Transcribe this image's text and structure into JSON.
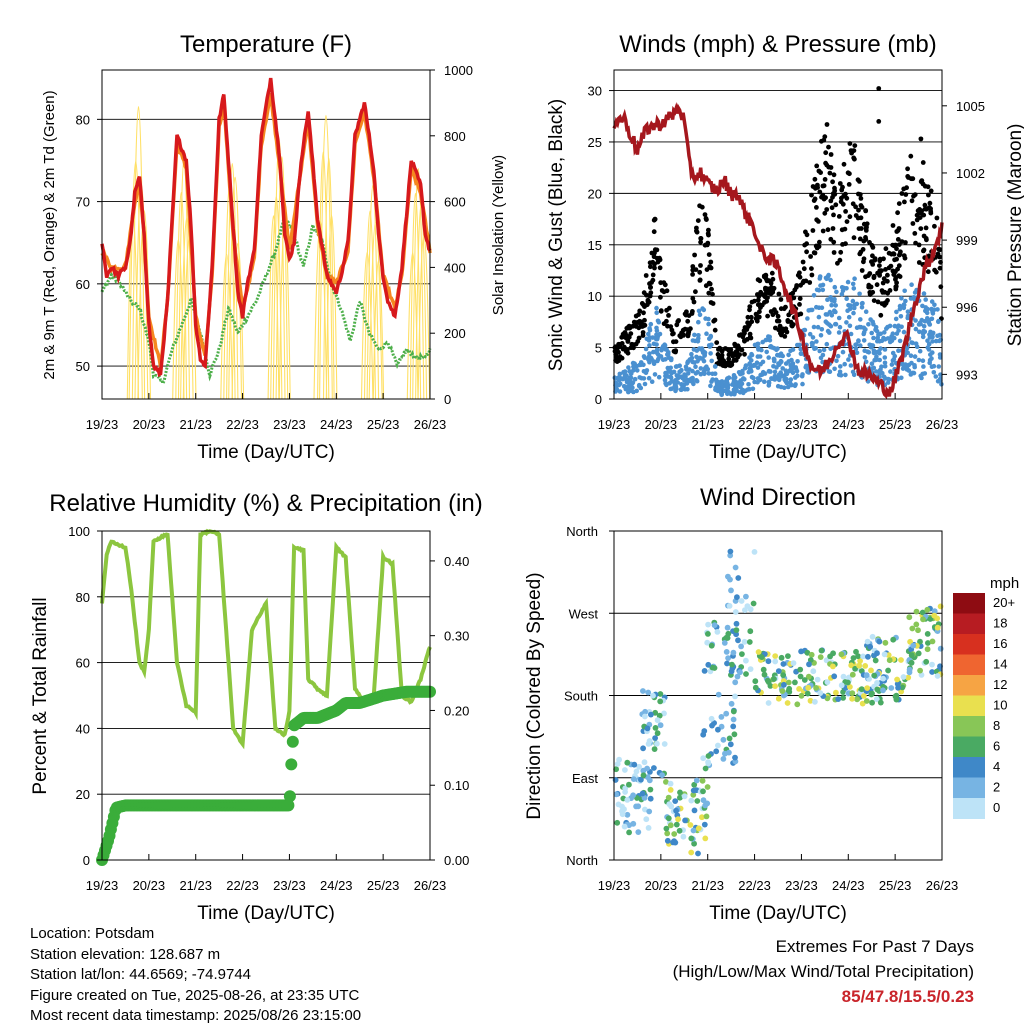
{
  "chart_data": [
    {
      "type": "line",
      "title": "Temperature (F)",
      "xlabel": "Time (Day/UTC)",
      "ylabel": "2m & 9m T (Red, Orange) & 2m Td (Green)",
      "ylabel_right": "Solar Insolation (Yellow)",
      "x_ticks": [
        "19/23",
        "20/23",
        "21/23",
        "22/23",
        "23/23",
        "24/23",
        "25/23",
        "26/23"
      ],
      "ylim": [
        46,
        86
      ],
      "y_ticks": [
        50,
        60,
        70,
        80
      ],
      "ylim_right": [
        0,
        1000
      ],
      "y_ticks_right": [
        0,
        200,
        400,
        600,
        800,
        1000
      ],
      "grid": "horizontal",
      "colors": {
        "t2m": "#d7191c",
        "t9m": "#f5871f",
        "td": "#4daf4a",
        "solar": "#ffe066"
      },
      "series": [
        {
          "key": "t2m",
          "x": [
            0,
            0.1,
            0.2,
            0.35,
            0.5,
            0.6,
            0.7,
            0.8,
            0.9,
            1.0,
            1.1,
            1.25,
            1.4,
            1.6,
            1.8,
            1.9,
            2.0,
            2.1,
            2.2,
            2.35,
            2.5,
            2.6,
            2.8,
            2.9,
            3.0,
            3.1,
            3.25,
            3.4,
            3.6,
            3.8,
            3.9,
            4.0,
            4.1,
            4.25,
            4.4,
            4.6,
            4.8,
            4.9,
            5.0,
            5.1,
            5.25,
            5.4,
            5.6,
            5.8,
            5.9,
            6.0,
            6.1,
            6.25,
            6.4,
            6.6,
            6.8,
            6.9,
            7.0
          ],
          "y": [
            65,
            61,
            62,
            61,
            62,
            65,
            71,
            73,
            66,
            55,
            50,
            49,
            58,
            78,
            75,
            67,
            55,
            51,
            50,
            62,
            80,
            83,
            67,
            59,
            56,
            60,
            64,
            78,
            85,
            75,
            66,
            63,
            65,
            75,
            81,
            68,
            61,
            60,
            59,
            61,
            65,
            78,
            82,
            74,
            66,
            61,
            58,
            56,
            62,
            75,
            72,
            66,
            64
          ]
        },
        {
          "key": "t9m",
          "x": [
            0,
            0.2,
            0.5,
            0.7,
            0.8,
            0.9,
            1.0,
            1.25,
            1.4,
            1.6,
            1.8,
            2.0,
            2.2,
            2.35,
            2.5,
            2.6,
            2.8,
            3.0,
            3.25,
            3.4,
            3.6,
            3.8,
            4.0,
            4.25,
            4.4,
            4.6,
            4.8,
            5.0,
            5.25,
            5.4,
            5.6,
            5.8,
            6.0,
            6.25,
            6.4,
            6.6,
            6.8,
            7.0
          ],
          "y": [
            64,
            62,
            62,
            70,
            72,
            66,
            56,
            50,
            58,
            77,
            74,
            56,
            51,
            61,
            79,
            82,
            66,
            57,
            63,
            77,
            83,
            74,
            64,
            74,
            80,
            67,
            61,
            60,
            64,
            77,
            81,
            73,
            61,
            57,
            61,
            74,
            71,
            64
          ]
        },
        {
          "key": "td",
          "x": [
            0,
            0.2,
            0.4,
            0.6,
            0.8,
            1.0,
            1.1,
            1.3,
            1.5,
            1.7,
            1.9,
            2.1,
            2.3,
            2.5,
            2.7,
            2.9,
            3.1,
            3.3,
            3.5,
            3.7,
            3.9,
            4.1,
            4.3,
            4.5,
            4.7,
            4.9,
            5.1,
            5.3,
            5.5,
            5.7,
            5.9,
            6.1,
            6.3,
            6.5,
            6.7,
            6.9,
            7.0
          ],
          "y": [
            59,
            61,
            60,
            58,
            57,
            53,
            49,
            48,
            52,
            55,
            58,
            54,
            49,
            52,
            57,
            54,
            56,
            58,
            61,
            64,
            68,
            66,
            62,
            67,
            65,
            60,
            57,
            53,
            58,
            54,
            52,
            53,
            50,
            52,
            51,
            51,
            52
          ]
        },
        {
          "key": "solar",
          "peaks_x": [
            0.78,
            1.75,
            2.78,
            3.78,
            4.78,
            5.78,
            6.75
          ],
          "peaks_y": [
            1000,
            840,
            880,
            950,
            1000,
            780,
            860
          ]
        }
      ]
    },
    {
      "type": "scatter",
      "title": "Winds (mph) & Pressure (mb)",
      "xlabel": "Time (Day/UTC)",
      "ylabel": "Sonic Wind & Gust (Blue, Black)",
      "ylabel_right": "Station Pressure (Maroon)",
      "x_ticks": [
        "19/23",
        "20/23",
        "21/23",
        "22/23",
        "23/23",
        "24/23",
        "25/23",
        "26/23"
      ],
      "ylim": [
        0,
        32
      ],
      "y_ticks": [
        0,
        5,
        10,
        15,
        20,
        25,
        30
      ],
      "ylim_right": [
        991.9,
        1006.6
      ],
      "y_ticks_right": [
        993,
        996,
        999,
        1002,
        1005
      ],
      "grid": "horizontal",
      "colors": {
        "wind": "#4a90d0",
        "gust": "#000000",
        "pressure": "#a5171d"
      },
      "pressure": {
        "x": [
          0,
          0.2,
          0.4,
          0.5,
          0.7,
          1.0,
          1.2,
          1.4,
          1.5,
          1.6,
          1.7,
          1.85,
          2.0,
          2.2,
          2.35,
          2.5,
          2.6,
          2.8,
          3.0,
          3.1,
          3.3,
          3.5,
          3.6,
          3.75,
          3.9,
          4.0,
          4.2,
          4.4,
          4.6,
          4.8,
          5.0,
          5.2,
          5.5,
          5.7,
          5.9,
          6.0,
          6.2,
          6.4,
          6.6,
          6.8,
          7.0
        ],
        "y": [
          1004.2,
          1004.5,
          1003.5,
          1003.0,
          1004.0,
          1004.2,
          1004.5,
          1004.9,
          1004.3,
          1002.5,
          1001.8,
          1002.0,
          1001.5,
          1001.2,
          1001.7,
          1001.0,
          1001.2,
          1000.2,
          999.5,
          998.6,
          998.2,
          997.8,
          997.2,
          996.3,
          995.4,
          994.8,
          993.4,
          993.1,
          993.6,
          994.5,
          994.7,
          993.2,
          992.9,
          992.5,
          992.2,
          992.8,
          994.2,
          996.0,
          997.5,
          998.4,
          999.6
        ]
      },
      "wind_envelope": {
        "x": [
          0,
          0.3,
          0.6,
          0.9,
          1.0,
          1.3,
          1.6,
          1.8,
          2.0,
          2.2,
          2.5,
          2.8,
          3.0,
          3.3,
          3.6,
          3.9,
          4.2,
          4.5,
          4.8,
          5.1,
          5.4,
          5.7,
          6.0,
          6.3,
          6.6,
          6.9,
          7.0
        ],
        "y": [
          2,
          3,
          4,
          9,
          6,
          3,
          4,
          9,
          8,
          2,
          2,
          3,
          5,
          6,
          4,
          5,
          9,
          13,
          10,
          12,
          8,
          6,
          8,
          11,
          10,
          9,
          5
        ]
      },
      "gust_outliers": [
        [
          5.65,
          30.2
        ],
        [
          5.65,
          27.0
        ],
        [
          6.55,
          25.3
        ],
        [
          6.6,
          23.0
        ]
      ]
    },
    {
      "type": "line",
      "title": "Relative Humidity (%) & Precipitation (in)",
      "xlabel": "Time (Day/UTC)",
      "ylabel": "Percent & Total Rainfall",
      "x_ticks": [
        "19/23",
        "20/23",
        "21/23",
        "22/23",
        "23/23",
        "24/23",
        "25/23",
        "26/23"
      ],
      "ylim": [
        0,
        100
      ],
      "y_ticks": [
        0,
        20,
        40,
        60,
        80,
        100
      ],
      "ylim_right": [
        0,
        0.44
      ],
      "y_ticks_right": [
        "0.00",
        "0.10",
        "0.20",
        "0.30",
        "0.40"
      ],
      "grid": "horizontal",
      "colors": {
        "rh": "#8cc63f",
        "precip": "#3aad3a"
      },
      "rh": {
        "x": [
          0,
          0.1,
          0.2,
          0.3,
          0.5,
          0.6,
          0.8,
          0.9,
          1.0,
          1.1,
          1.25,
          1.4,
          1.6,
          1.8,
          2.0,
          2.1,
          2.3,
          2.5,
          2.7,
          2.8,
          3.0,
          3.2,
          3.5,
          3.7,
          3.9,
          4.0,
          4.1,
          4.3,
          4.4,
          4.6,
          4.8,
          5.0,
          5.2,
          5.4,
          5.6,
          5.8,
          6.0,
          6.2,
          6.4,
          6.6,
          6.8,
          7.0
        ],
        "y": [
          78,
          93,
          97,
          96,
          95,
          85,
          60,
          57,
          70,
          97,
          98,
          99,
          60,
          47,
          45,
          99,
          100,
          99,
          60,
          40,
          35,
          70,
          78,
          40,
          38,
          45,
          95,
          94,
          55,
          52,
          50,
          95,
          92,
          52,
          48,
          50,
          92,
          90,
          50,
          48,
          55,
          65
        ]
      },
      "precip": {
        "x": [
          0,
          0.05,
          0.15,
          0.3,
          0.5,
          4.0,
          4.02,
          4.05,
          4.1,
          4.3,
          4.6,
          5.0,
          5.2,
          5.5,
          6.0,
          6.5,
          7.0
        ],
        "y": [
          0,
          0.01,
          0.03,
          0.07,
          0.073,
          0.073,
          0.1,
          0.14,
          0.18,
          0.19,
          0.19,
          0.2,
          0.21,
          0.21,
          0.22,
          0.225,
          0.225
        ]
      }
    },
    {
      "type": "scatter",
      "title": "Wind Direction",
      "xlabel": "Time (Day/UTC)",
      "ylabel": "Direction (Colored By Speed)",
      "x_ticks": [
        "19/23",
        "20/23",
        "21/23",
        "22/23",
        "23/23",
        "24/23",
        "25/23",
        "26/23"
      ],
      "y_ticks": [
        "North",
        "East",
        "South",
        "West",
        "North"
      ],
      "ylim": [
        0,
        360
      ],
      "legend": {
        "title": "mph",
        "labels": [
          "20+",
          "18",
          "16",
          "14",
          "12",
          "10",
          "8",
          "6",
          "4",
          "2",
          "0"
        ],
        "colors": [
          "#8e0c12",
          "#b71c22",
          "#d7301f",
          "#ef6530",
          "#f6a444",
          "#e9e04f",
          "#88c657",
          "#4aaa63",
          "#3f88c8",
          "#77b4e3",
          "#bde3f7"
        ]
      },
      "clusters": [
        {
          "x0": 0.0,
          "x1": 0.8,
          "y0": 30,
          "y1": 110,
          "n": 60
        },
        {
          "x0": 0.6,
          "x1": 1.1,
          "y0": 90,
          "y1": 185,
          "n": 40
        },
        {
          "x0": 1.1,
          "x1": 2.0,
          "y0": 5,
          "y1": 90,
          "n": 70
        },
        {
          "x0": 1.9,
          "x1": 2.6,
          "y0": 100,
          "y1": 260,
          "n": 60
        },
        {
          "x0": 2.4,
          "x1": 3.0,
          "y0": 200,
          "y1": 340,
          "n": 45
        },
        {
          "x0": 3.0,
          "x1": 4.3,
          "y0": 170,
          "y1": 230,
          "n": 80
        },
        {
          "x0": 4.3,
          "x1": 5.3,
          "y0": 175,
          "y1": 230,
          "n": 70
        },
        {
          "x0": 5.3,
          "x1": 6.3,
          "y0": 170,
          "y1": 245,
          "n": 80
        },
        {
          "x0": 6.3,
          "x1": 7.0,
          "y0": 200,
          "y1": 280,
          "n": 60
        }
      ]
    }
  ],
  "info": {
    "location": "Location: Potsdam",
    "elevation": "Station elevation: 128.687 m",
    "latlon": "Station lat/lon: 44.6569; -74.9744",
    "created": "Figure created on Tue, 2025-08-26, at 23:35 UTC",
    "recent": "Most recent data timestamp: 2025/08/26 23:15:00"
  },
  "extremes": {
    "line1": "Extremes For Past 7 Days",
    "line2": "(High/Low/Max Wind/Total Precipitation)",
    "values": "85/47.8/15.5/0.23"
  }
}
